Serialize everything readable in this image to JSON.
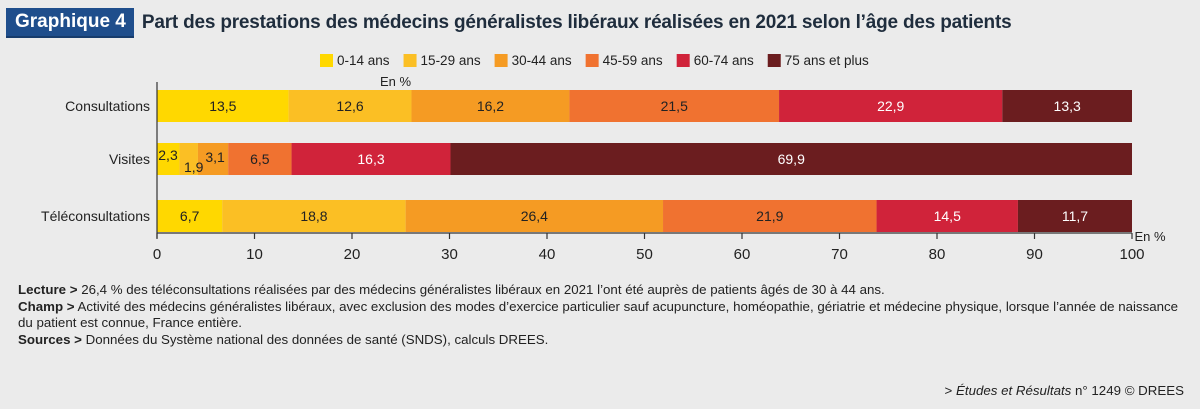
{
  "figure": {
    "badge": "Graphique 4",
    "title": "Part des prestations des médecins généralistes libéraux réalisées en 2021 selon l’âge des patients"
  },
  "chart_data": {
    "type": "bar",
    "orientation": "horizontal",
    "stacked": true,
    "unit_label_top": "En %",
    "unit_label_axis": "En %",
    "categories": [
      "Consultations",
      "Visites",
      "Téléconsultations"
    ],
    "series": [
      {
        "name": "0-14 ans",
        "color": "#ffd800",
        "values": [
          13.5,
          2.3,
          6.7
        ]
      },
      {
        "name": "15-29 ans",
        "color": "#fbbf24",
        "values": [
          12.6,
          1.9,
          18.8
        ]
      },
      {
        "name": "30-44 ans",
        "color": "#f59b23",
        "values": [
          16.2,
          3.1,
          26.4
        ]
      },
      {
        "name": "45-59 ans",
        "color": "#f07230",
        "values": [
          21.5,
          6.5,
          21.9
        ]
      },
      {
        "name": "60-74 ans",
        "color": "#d0233a",
        "values": [
          22.9,
          16.3,
          14.5
        ]
      },
      {
        "name": "75 ans et plus",
        "color": "#6b1d1f",
        "values": [
          13.3,
          69.9,
          11.7
        ]
      }
    ],
    "labels": [
      [
        "13,5",
        "12,6",
        "16,2",
        "21,5",
        "22,9",
        "13,3"
      ],
      [
        "2,3",
        "1,9",
        "3,1",
        "6,5",
        "16,3",
        "69,9"
      ],
      [
        "6,7",
        "18,8",
        "26,4",
        "21,9",
        "14,5",
        "11,7"
      ]
    ],
    "xlim": [
      0,
      100
    ],
    "xticks": [
      "0",
      "10",
      "20",
      "30",
      "40",
      "50",
      "60",
      "70",
      "80",
      "90",
      "100"
    ],
    "grid": false,
    "legend": "top"
  },
  "notes": {
    "lecture_label": "Lecture >",
    "lecture_text": " 26,4 % des téléconsultations réalisées par des médecins généralistes libéraux en 2021 l’ont été auprès de patients âgés de 30 à 44 ans.",
    "champ_label": "Champ >",
    "champ_text": " Activité des médecins généralistes libéraux, avec exclusion des modes d’exercice particulier sauf acupuncture, homéopathie, gériatrie et médecine physique, lorsque l’année de naissance du patient est connue, France entière.",
    "sources_label": "Sources >",
    "sources_text": " Données du Système national des données de santé (SNDS), calculs DREES."
  },
  "reference": {
    "prefix": "> ",
    "publication": "Études et Résultats",
    "number": " n° 1249 © DREES"
  }
}
